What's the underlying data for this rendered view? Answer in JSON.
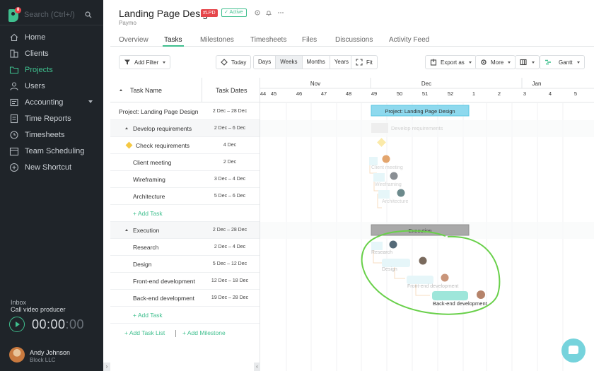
{
  "sidebar": {
    "search_placeholder": "Search (Ctrl+/)",
    "logo_badge": "8",
    "items": [
      {
        "label": "Home",
        "icon": "home-icon"
      },
      {
        "label": "Clients",
        "icon": "clients-icon"
      },
      {
        "label": "Projects",
        "icon": "projects-icon",
        "active": true
      },
      {
        "label": "Users",
        "icon": "users-icon"
      },
      {
        "label": "Accounting",
        "icon": "accounting-icon"
      },
      {
        "label": "Time Reports",
        "icon": "time-reports-icon"
      },
      {
        "label": "Timesheets",
        "icon": "timesheets-icon"
      },
      {
        "label": "Team Scheduling",
        "icon": "team-scheduling-icon"
      },
      {
        "label": "New Shortcut",
        "icon": "plus-icon"
      }
    ],
    "inbox_label": "Inbox",
    "inbox_task": "Call video producer",
    "timer": {
      "main": "00:00",
      "seconds": ":00"
    },
    "user": {
      "name": "Andy Johnson",
      "company": "Block LLC"
    },
    "collapse_glyph": "›"
  },
  "header": {
    "title": "Landing Page Design",
    "code": "#LPD",
    "status": "Active",
    "client": "Paymo"
  },
  "tabs": [
    "Overview",
    "Tasks",
    "Milestones",
    "Timesheets",
    "Files",
    "Discussions",
    "Activity Feed"
  ],
  "toolbar": {
    "add_filter": "Add Filter",
    "today": "Today",
    "ranges": [
      "Days",
      "Weeks",
      "Months",
      "Years"
    ],
    "selected_range": "Weeks",
    "fit": "Fit",
    "export": "Export as",
    "more": "More",
    "view": "Gantt"
  },
  "table": {
    "col_name": "Task Name",
    "col_dates": "Task Dates",
    "rows": [
      {
        "name": "Project: Landing Page Design",
        "dates": "2 Dec – 28 Dec",
        "kind": "project"
      },
      {
        "name": "Develop requirements",
        "dates": "2 Dec – 6 Dec",
        "kind": "group"
      },
      {
        "name": "Check requirements",
        "dates": "4 Dec",
        "kind": "milestone"
      },
      {
        "name": "Client meeting",
        "dates": "2 Dec",
        "kind": "task"
      },
      {
        "name": "Wireframing",
        "dates": "3 Dec – 4 Dec",
        "kind": "task"
      },
      {
        "name": "Architecture",
        "dates": "5 Dec – 6 Dec",
        "kind": "task"
      },
      {
        "name": "+ Add Task",
        "dates": "",
        "kind": "add"
      },
      {
        "name": "Execution",
        "dates": "2 Dec – 28 Dec",
        "kind": "group"
      },
      {
        "name": "Research",
        "dates": "2 Dec – 4 Dec",
        "kind": "task"
      },
      {
        "name": "Design",
        "dates": "5 Dec – 12 Dec",
        "kind": "task"
      },
      {
        "name": "Front-end development",
        "dates": "12 Dec – 18 Dec",
        "kind": "task"
      },
      {
        "name": "Back-end development",
        "dates": "19 Dec – 28 Dec",
        "kind": "task"
      },
      {
        "name": "+ Add Task",
        "dates": "",
        "kind": "add"
      }
    ],
    "add_task_list": "+ Add Task List",
    "add_milestone": "+ Add Milestone",
    "separator": "|"
  },
  "gantt": {
    "months": [
      {
        "label": "Nov"
      },
      {
        "label": "Dec"
      },
      {
        "label": "Jan"
      }
    ],
    "weeks": [
      "44",
      "45",
      "46",
      "47",
      "48",
      "49",
      "50",
      "51",
      "52",
      "1",
      "2",
      "3",
      "4",
      "5"
    ],
    "bar_labels": {
      "project": "Project: Landing Page Design",
      "develop": "Develop requirements",
      "client_meeting": "Client meeting",
      "wireframing": "Wireframing",
      "architecture": "Architecture",
      "execution": "Execution",
      "research": "Research",
      "design": "Design",
      "frontend": "Front-end development",
      "backend": "Back-end development"
    },
    "colors": {
      "project_bar": "#8ed9ee",
      "execution_bar": "#a9a9a9",
      "highlight_bar": "#9ee6da",
      "faded_bar": "#e6f6f9",
      "annotation": "#69d04a"
    }
  }
}
